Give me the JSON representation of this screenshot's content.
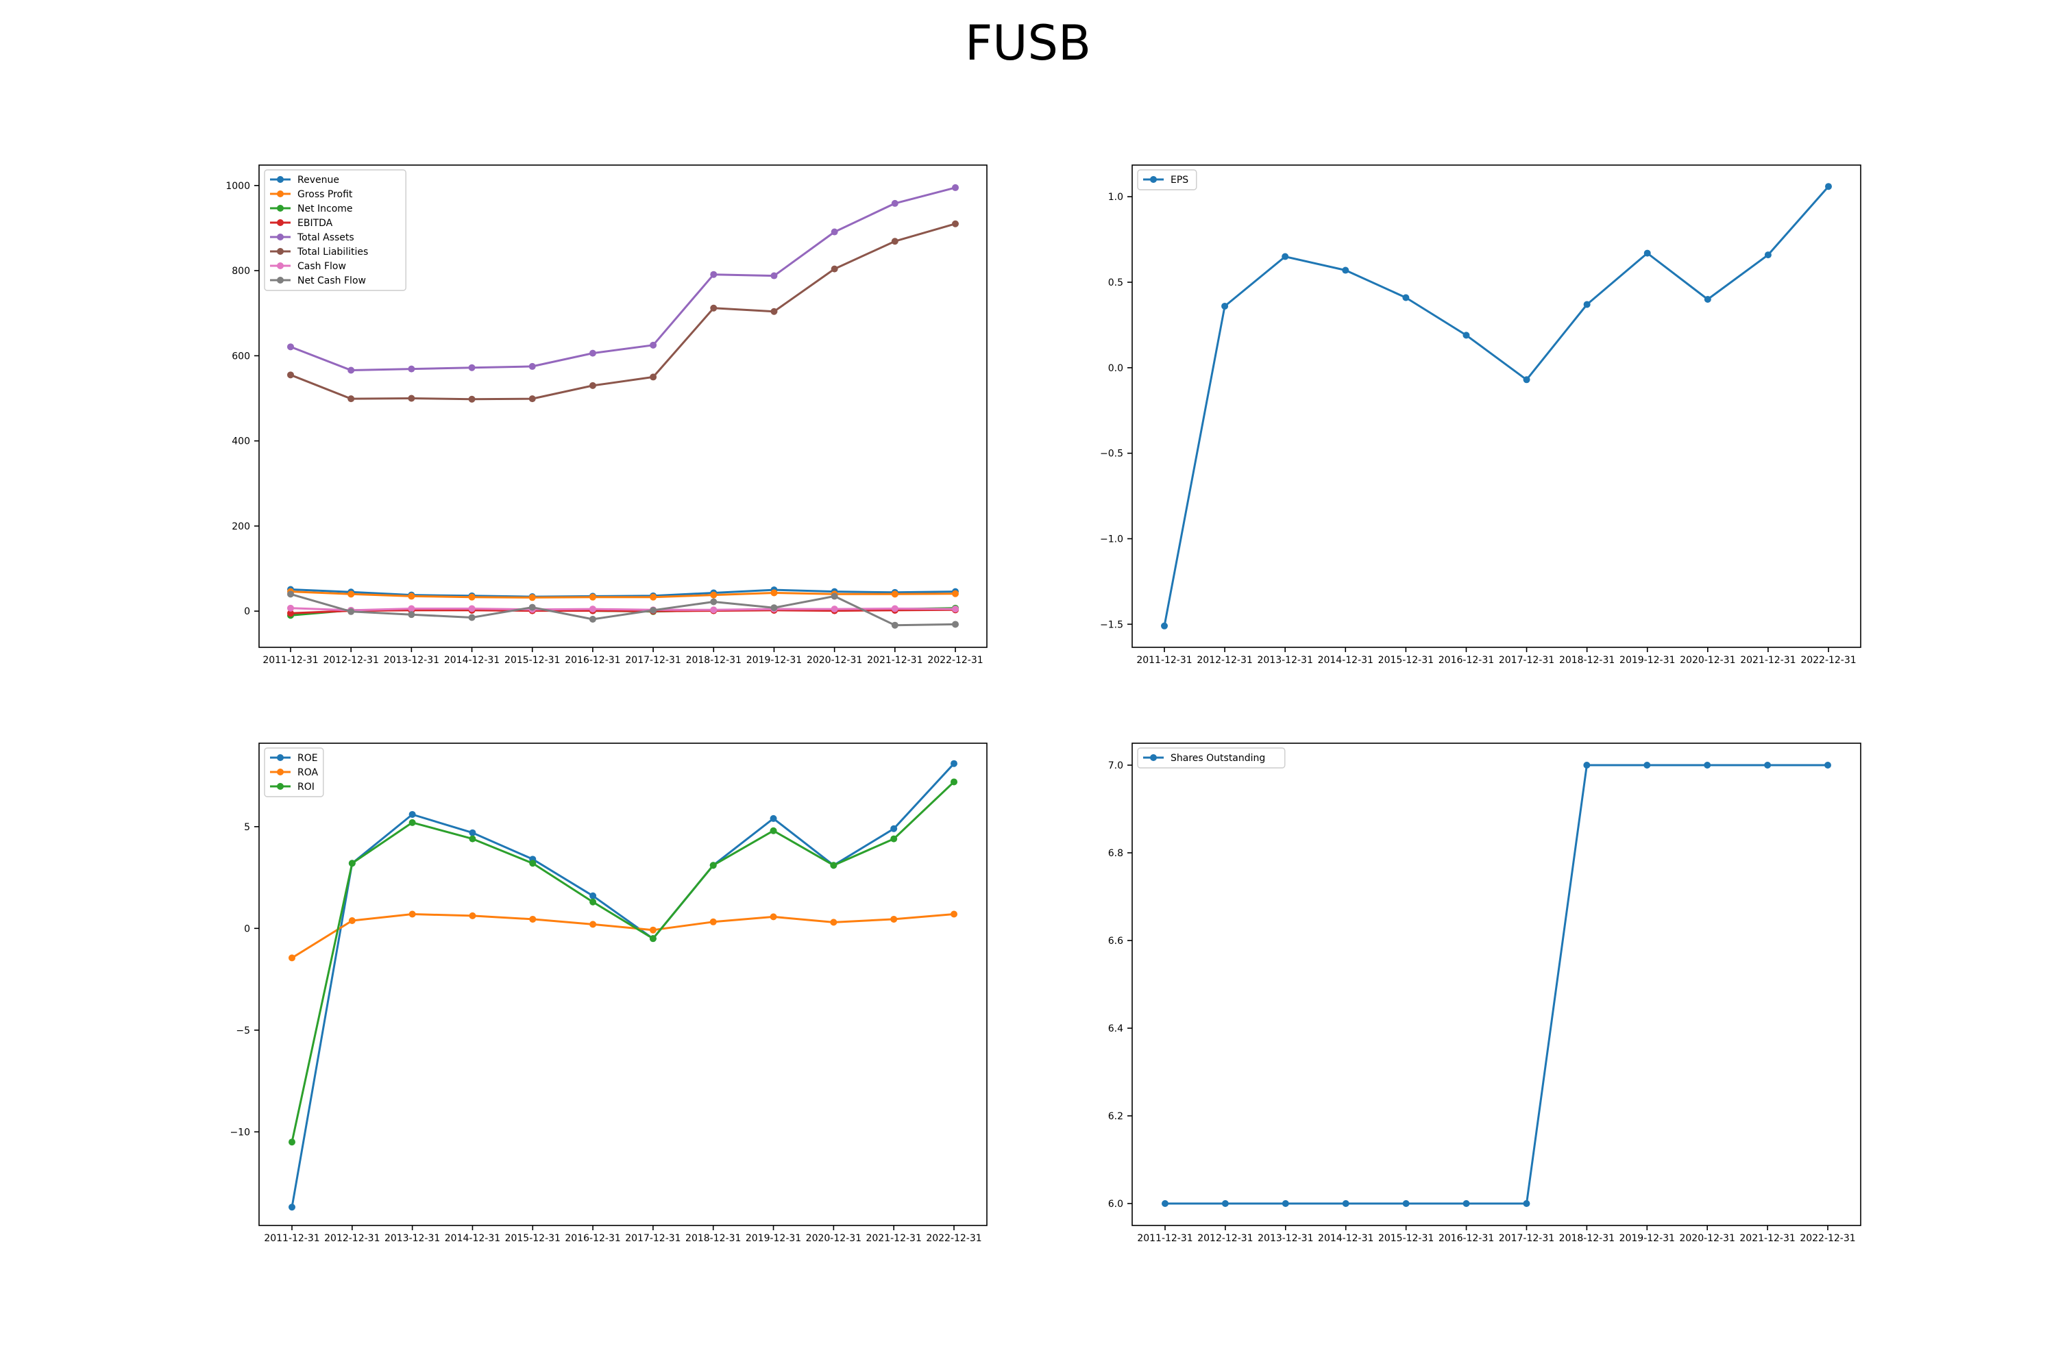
{
  "title": "FUSB",
  "chart_data": [
    {
      "type": "line",
      "x": [
        "2011-12-31",
        "2012-12-31",
        "2013-12-31",
        "2014-12-31",
        "2015-12-31",
        "2016-12-31",
        "2017-12-31",
        "2018-12-31",
        "2019-12-31",
        "2020-12-31",
        "2021-12-31",
        "2022-12-31"
      ],
      "ylim": [
        -85,
        1048
      ],
      "yticks": [
        0,
        200,
        400,
        600,
        800,
        1000
      ],
      "legend": "upper left",
      "series": [
        {
          "name": "Revenue",
          "color": "#1f77b4",
          "values": [
            51,
            45,
            38,
            36,
            34,
            35,
            36,
            43,
            50,
            46,
            44,
            46
          ]
        },
        {
          "name": "Gross Profit",
          "color": "#ff7f0e",
          "values": [
            46,
            40,
            35,
            33,
            32,
            33,
            33,
            38,
            43,
            40,
            40,
            41
          ]
        },
        {
          "name": "Net Income",
          "color": "#2ca02c",
          "values": [
            -10,
            2,
            4,
            4,
            3,
            1,
            -1,
            2,
            5,
            3,
            5,
            7
          ]
        },
        {
          "name": "EBITDA",
          "color": "#d62728",
          "values": [
            -5,
            1,
            2,
            2,
            1,
            1,
            0,
            1,
            2,
            1,
            2,
            3
          ]
        },
        {
          "name": "Total Assets",
          "color": "#9467bd",
          "values": [
            621,
            566,
            569,
            572,
            575,
            606,
            625,
            791,
            788,
            891,
            958,
            995
          ]
        },
        {
          "name": "Total Liabilities",
          "color": "#8c564b",
          "values": [
            555,
            499,
            500,
            498,
            499,
            530,
            550,
            712,
            704,
            804,
            869,
            910
          ]
        },
        {
          "name": "Cash Flow",
          "color": "#e377c2",
          "values": [
            7,
            2,
            6,
            6,
            4,
            5,
            3,
            3,
            5,
            5,
            6,
            5
          ]
        },
        {
          "name": "Net Cash Flow",
          "color": "#7f7f7f",
          "values": [
            40,
            -1,
            -8,
            -15,
            9,
            -19,
            2,
            22,
            8,
            35,
            -33,
            -31
          ]
        }
      ]
    },
    {
      "type": "line",
      "x": [
        "2011-12-31",
        "2012-12-31",
        "2013-12-31",
        "2014-12-31",
        "2015-12-31",
        "2016-12-31",
        "2017-12-31",
        "2018-12-31",
        "2019-12-31",
        "2020-12-31",
        "2021-12-31",
        "2022-12-31"
      ],
      "ylim": [
        -1.635,
        1.185
      ],
      "yticks": [
        1.0,
        0.5,
        0.0,
        -0.5,
        -1.0,
        -1.5
      ],
      "ytick_labels": [
        "1.0",
        "0.5",
        "0.0",
        "−0.5",
        "−1.0",
        "−1.5"
      ],
      "legend": "upper left",
      "series": [
        {
          "name": "EPS",
          "color": "#1f77b4",
          "values": [
            -1.51,
            0.36,
            0.65,
            0.57,
            0.41,
            0.19,
            -0.07,
            0.37,
            0.67,
            0.4,
            0.66,
            1.06
          ]
        }
      ]
    },
    {
      "type": "line",
      "x": [
        "2011-12-31",
        "2012-12-31",
        "2013-12-31",
        "2014-12-31",
        "2015-12-31",
        "2016-12-31",
        "2017-12-31",
        "2018-12-31",
        "2019-12-31",
        "2020-12-31",
        "2021-12-31",
        "2022-12-31"
      ],
      "ylim": [
        -14.6,
        9.1
      ],
      "yticks": [
        5,
        0,
        -5,
        -10
      ],
      "ytick_labels": [
        "5",
        "0",
        "−5",
        "−10"
      ],
      "legend": "upper left",
      "series": [
        {
          "name": "ROE",
          "color": "#1f77b4",
          "values": [
            -13.7,
            3.2,
            5.6,
            4.7,
            3.4,
            1.6,
            -0.5,
            3.1,
            5.4,
            3.1,
            4.9,
            8.1
          ]
        },
        {
          "name": "ROA",
          "color": "#ff7f0e",
          "values": [
            -1.45,
            0.38,
            0.7,
            0.62,
            0.45,
            0.2,
            -0.08,
            0.32,
            0.57,
            0.3,
            0.45,
            0.7
          ]
        },
        {
          "name": "ROI",
          "color": "#2ca02c",
          "values": [
            -10.5,
            3.2,
            5.2,
            4.4,
            3.2,
            1.3,
            -0.5,
            3.1,
            4.8,
            3.1,
            4.4,
            7.2
          ]
        }
      ]
    },
    {
      "type": "line",
      "x": [
        "2011-12-31",
        "2012-12-31",
        "2013-12-31",
        "2014-12-31",
        "2015-12-31",
        "2016-12-31",
        "2017-12-31",
        "2018-12-31",
        "2019-12-31",
        "2020-12-31",
        "2021-12-31",
        "2022-12-31"
      ],
      "ylim": [
        5.95,
        7.05
      ],
      "yticks": [
        7.0,
        6.8,
        6.6,
        6.4,
        6.2,
        6.0
      ],
      "ytick_labels": [
        "7.0",
        "6.8",
        "6.6",
        "6.4",
        "6.2",
        "6.0"
      ],
      "legend": "upper left",
      "series": [
        {
          "name": "Shares Outstanding",
          "color": "#1f77b4",
          "values": [
            6,
            6,
            6,
            6,
            6,
            6,
            6,
            7,
            7,
            7,
            7,
            7
          ]
        }
      ]
    }
  ]
}
